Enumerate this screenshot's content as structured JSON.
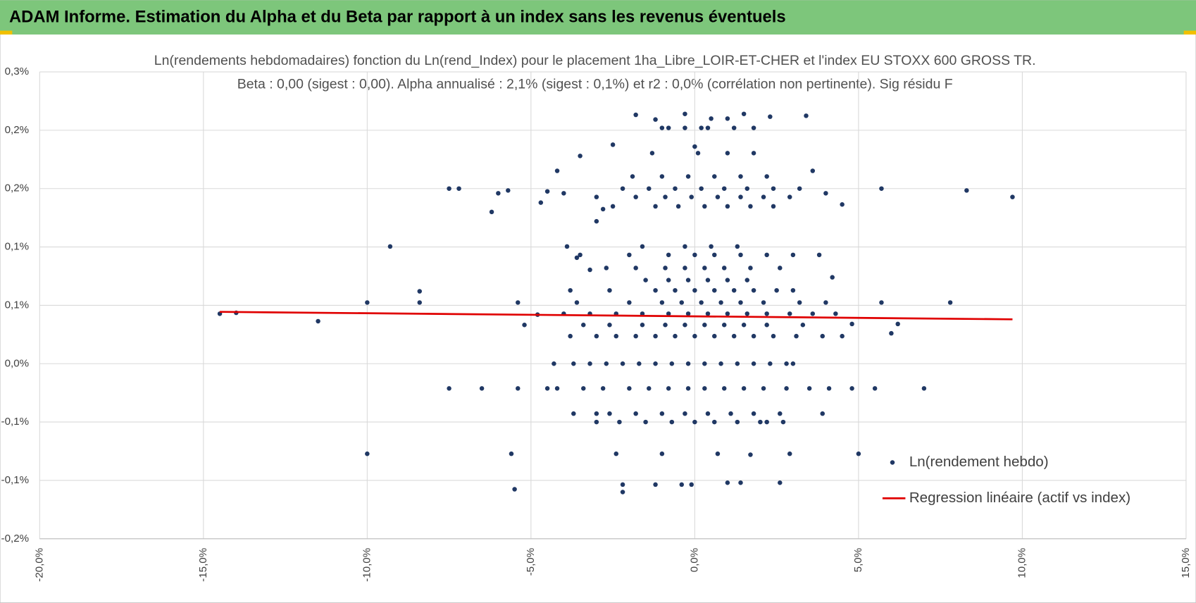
{
  "header": "ADAM Informe. Estimation du Alpha et du Beta par rapport à un index sans les revenus éventuels",
  "chart_data": {
    "type": "scatter",
    "title": "Ln(rendements hebdomadaires) fonction du Ln(rend_Index) pour le placement 1ha_Libre_LOIR-ET-CHER et l'index EU STOXX 600 GROSS TR.",
    "subtitle": "Beta : 0,00 (sigest : 0,00). Alpha annualisé : 2,1% (sigest : 0,1%) et r2 : 0,0% (corrélation non pertinente). Sig résidu F",
    "xlim": [
      -20,
      15
    ],
    "xticks": [
      {
        "value": -20,
        "label": "-20,0%"
      },
      {
        "value": -15,
        "label": "-15,0%"
      },
      {
        "value": -10,
        "label": "-10,0%"
      },
      {
        "value": -5,
        "label": "-5,0%"
      },
      {
        "value": 0,
        "label": "0,0%"
      },
      {
        "value": 5,
        "label": "5,0%"
      },
      {
        "value": 10,
        "label": "10,0%"
      },
      {
        "value": 15,
        "label": "15,0%"
      }
    ],
    "ylim": [
      -0.2,
      0.3
    ],
    "yticks": [
      {
        "value": -0.2,
        "label": "-0,2%"
      },
      {
        "value": -0.1375,
        "label": "-0,1%"
      },
      {
        "value": -0.075,
        "label": "-0,1%"
      },
      {
        "value": -0.0125,
        "label": "0,0%"
      },
      {
        "value": 0.05,
        "label": "0,1%"
      },
      {
        "value": 0.1125,
        "label": "0,1%"
      },
      {
        "value": 0.175,
        "label": "0,2%"
      },
      {
        "value": 0.2375,
        "label": "0,2%"
      },
      {
        "value": 0.3,
        "label": "0,3%"
      }
    ],
    "grid": true,
    "legend": "right",
    "series": [
      {
        "name": "Ln(rendement hebdo)",
        "color": "#203864",
        "mode": "markers",
        "x": [
          -14.5,
          -14,
          -11.5,
          -10,
          -10,
          -9.3,
          -8.4,
          -8.4,
          -7.5,
          -7.5,
          -7.2,
          -6.5,
          -6.2,
          -6,
          -5.7,
          -5.6,
          -5.5,
          -5.4,
          -5.4,
          -5.2,
          -4.8,
          -4.7,
          -4.5,
          -4.5,
          -4.2,
          -4,
          -3.9,
          -3.8,
          -3.6,
          -3.5,
          -3.2,
          -3.0,
          -2.8,
          -2.5,
          -2.4,
          -2.2,
          -1.8,
          -1.2,
          -0.8,
          -0.3,
          0,
          0.2,
          0.5,
          1,
          1.5,
          1.8,
          2.3,
          3.4,
          4,
          4.2,
          4.5,
          4.8,
          5,
          5.7,
          5.7,
          6,
          6.2,
          7.0,
          7.8,
          8.3,
          9.7,
          3,
          2.2,
          3.6,
          3.9,
          4.8,
          5.5,
          -3.0,
          2.6,
          1.4,
          -0.1,
          -1.2,
          -2.2,
          0.7,
          1.7,
          -1.0,
          2.9,
          -0.4,
          1,
          -4.2,
          -3.4,
          -2.8,
          -2.0,
          -1.4,
          -0.8,
          -0.2,
          0.3,
          0.9,
          1.5,
          2.1,
          2.8,
          3.5,
          4.1,
          -3.7,
          -2.6,
          -1.8,
          -1.0,
          -0.3,
          0.4,
          1.1,
          1.8,
          2.6,
          -3.0,
          -2.3,
          -1.5,
          -0.7,
          0,
          0.6,
          1.3,
          2.0,
          2.7,
          -4.3,
          -3.7,
          -3.2,
          -2.7,
          -2.2,
          -1.7,
          -1.2,
          -0.7,
          -0.2,
          0.3,
          0.8,
          1.3,
          1.8,
          2.3,
          2.8,
          3.0,
          -3.8,
          -3.0,
          -2.4,
          -1.8,
          -1.2,
          -0.6,
          0,
          0.6,
          1.2,
          1.8,
          2.4,
          3.1,
          3.9,
          4.5,
          -3.4,
          -2.6,
          -1.6,
          -0.9,
          -0.3,
          0.3,
          0.9,
          1.5,
          2.2,
          3.3,
          -4.0,
          -3.2,
          -2.4,
          -1.6,
          -0.8,
          -0.2,
          0.4,
          1.0,
          1.6,
          2.2,
          2.9,
          3.6,
          4.3,
          -3.6,
          -2.0,
          -1.0,
          -0.4,
          0.2,
          0.8,
          1.4,
          2.1,
          3.2,
          4.0,
          -2.6,
          -1.2,
          -0.6,
          0,
          0.6,
          1.2,
          1.8,
          2.5,
          -1.5,
          -0.8,
          -0.2,
          0.4,
          1.0,
          1.6,
          -2.7,
          -1.8,
          -0.9,
          -0.3,
          0.3,
          0.9,
          1.7,
          2.6,
          -3.5,
          -2.0,
          -0.8,
          0,
          0.6,
          1.4,
          2.2,
          3.0,
          3.8,
          -1.6,
          -0.3,
          0.5,
          1.3,
          -2.5,
          -1.2,
          -0.5,
          0.3,
          1.0,
          1.7,
          2.4,
          -3.0,
          -1.8,
          -0.9,
          -0.1,
          0.7,
          1.4,
          2.1,
          2.9,
          -2.2,
          -1.4,
          -0.6,
          0.2,
          0.9,
          1.6,
          2.4,
          3.2,
          -1.9,
          -1.0,
          -0.2,
          0.6,
          1.4,
          2.2,
          -1.3,
          0.1,
          1.0,
          1.8,
          -1.0,
          -0.3,
          0.4,
          1.2
        ],
        "values": [
          0.041,
          0.042,
          0.033,
          0.053,
          -0.109,
          0.113,
          0.065,
          0.053,
          0.175,
          -0.039,
          0.175,
          -0.039,
          0.15,
          0.17,
          0.173,
          -0.109,
          -0.147,
          0.053,
          -0.039,
          0.029,
          0.04,
          0.16,
          0.172,
          -0.039,
          0.194,
          0.17,
          0.113,
          0.066,
          0.101,
          0.21,
          0.088,
          0.14,
          0.153,
          0.222,
          -0.109,
          -0.15,
          0.254,
          0.249,
          0.24,
          0.255,
          0.22,
          0.24,
          0.25,
          0.25,
          0.255,
          0.24,
          0.252,
          0.253,
          0.17,
          0.08,
          0.158,
          0.03,
          -0.109,
          0.175,
          0.053,
          0.02,
          0.03,
          -0.039,
          0.053,
          0.173,
          0.166,
          0.066,
          -0.075,
          0.194,
          -0.066,
          -0.039,
          -0.039,
          -0.066,
          -0.14,
          -0.14,
          -0.142,
          -0.142,
          -0.142,
          -0.109,
          -0.11,
          -0.109,
          -0.109,
          -0.142,
          -0.14,
          -0.039,
          -0.039,
          -0.039,
          -0.039,
          -0.039,
          -0.039,
          -0.039,
          -0.039,
          -0.039,
          -0.039,
          -0.039,
          -0.039,
          -0.039,
          -0.039,
          -0.066,
          -0.066,
          -0.066,
          -0.066,
          -0.066,
          -0.066,
          -0.066,
          -0.066,
          -0.066,
          -0.075,
          -0.075,
          -0.075,
          -0.075,
          -0.075,
          -0.075,
          -0.075,
          -0.075,
          -0.075,
          -0.0125,
          -0.0125,
          -0.0125,
          -0.0125,
          -0.0125,
          -0.0125,
          -0.0125,
          -0.0125,
          -0.0125,
          -0.0125,
          -0.0125,
          -0.0125,
          -0.0125,
          -0.0125,
          -0.0125,
          -0.0125,
          0.017,
          0.017,
          0.017,
          0.017,
          0.017,
          0.017,
          0.017,
          0.017,
          0.017,
          0.017,
          0.017,
          0.017,
          0.017,
          0.017,
          0.029,
          0.029,
          0.029,
          0.029,
          0.029,
          0.029,
          0.029,
          0.029,
          0.029,
          0.029,
          0.041,
          0.041,
          0.041,
          0.041,
          0.041,
          0.041,
          0.041,
          0.041,
          0.041,
          0.041,
          0.041,
          0.041,
          0.041,
          0.053,
          0.053,
          0.053,
          0.053,
          0.053,
          0.053,
          0.053,
          0.053,
          0.053,
          0.053,
          0.066,
          0.066,
          0.066,
          0.066,
          0.066,
          0.066,
          0.066,
          0.066,
          0.077,
          0.077,
          0.077,
          0.077,
          0.077,
          0.077,
          0.09,
          0.09,
          0.09,
          0.09,
          0.09,
          0.09,
          0.09,
          0.09,
          0.104,
          0.104,
          0.104,
          0.104,
          0.104,
          0.104,
          0.104,
          0.104,
          0.104,
          0.113,
          0.113,
          0.113,
          0.113,
          0.156,
          0.156,
          0.156,
          0.156,
          0.156,
          0.156,
          0.156,
          0.166,
          0.166,
          0.166,
          0.166,
          0.166,
          0.166,
          0.166,
          0.166,
          0.175,
          0.175,
          0.175,
          0.175,
          0.175,
          0.175,
          0.175,
          0.175,
          0.188,
          0.188,
          0.188,
          0.188,
          0.188,
          0.188,
          0.213,
          0.213,
          0.213,
          0.213,
          0.24,
          0.24,
          0.24,
          0.24
        ]
      },
      {
        "name": "Regression linéaire (actif vs index)",
        "color": "#e00000",
        "mode": "line",
        "x": [
          -14.5,
          9.7
        ],
        "values": [
          0.043,
          0.035
        ]
      }
    ]
  }
}
